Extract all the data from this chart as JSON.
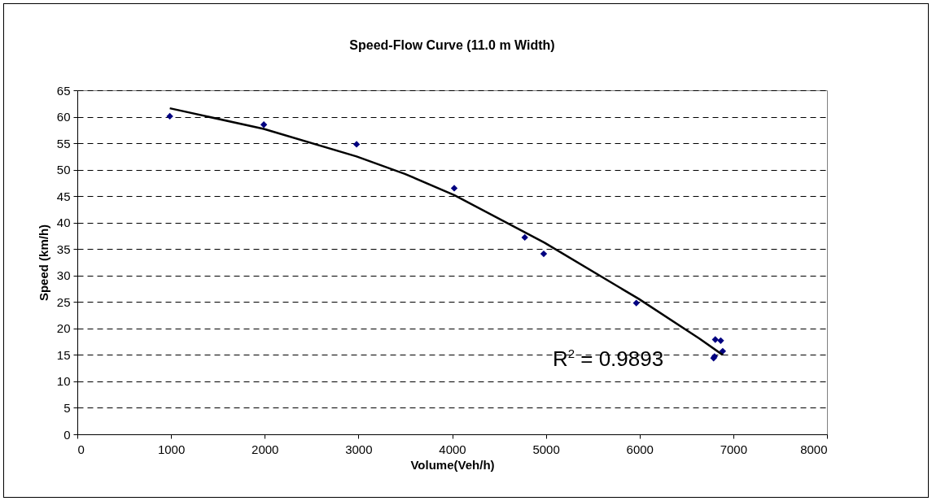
{
  "chart_data": {
    "type": "scatter",
    "title": "Speed-Flow Curve (11.0 m Width)",
    "xlabel": "Volume(Veh/h)",
    "ylabel": "Speed (km/h)",
    "xlim": [
      0,
      8000
    ],
    "xticks": [
      0,
      1000,
      2000,
      3000,
      4000,
      5000,
      6000,
      7000,
      8000
    ],
    "ylim": [
      0,
      65
    ],
    "yticks": [
      0,
      5,
      10,
      15,
      20,
      25,
      30,
      35,
      40,
      45,
      50,
      55,
      60,
      65
    ],
    "grid": "y",
    "series": [
      {
        "marker": "diamond",
        "color": "#000080",
        "x": [
          987,
          1990,
          2980,
          4022,
          4775,
          4977,
          5965,
          6808,
          6866,
          6887,
          6790,
          6800
        ],
        "values": [
          60.1,
          58.5,
          54.8,
          46.5,
          37.2,
          34.1,
          24.8,
          17.9,
          17.7,
          15.7,
          14.4,
          14.7
        ]
      },
      {
        "type": "line",
        "marker": "none",
        "color": "#000000",
        "x": [
          987,
          1990,
          2980,
          3496,
          4022,
          4985,
          5990,
          6638,
          6887
        ],
        "values": [
          61.6,
          57.7,
          52.5,
          49.2,
          45.2,
          36.2,
          25.6,
          18.1,
          15.0
        ]
      }
    ],
    "annotations": [
      "R$^{2}$ = 0.9893"
    ]
  }
}
